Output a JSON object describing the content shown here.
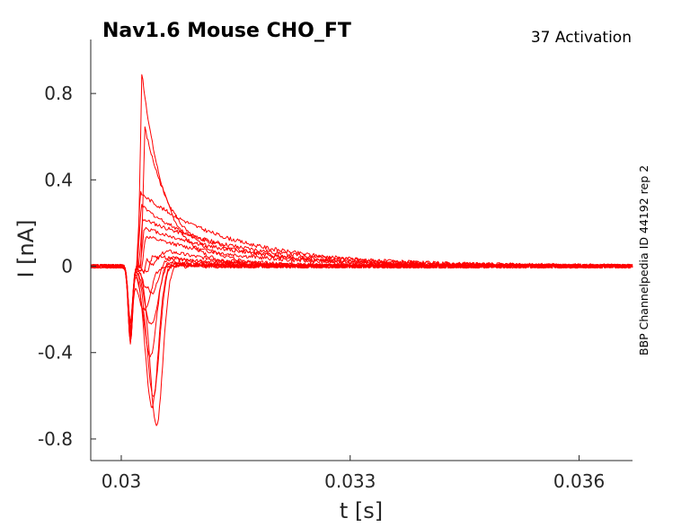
{
  "chart_data": {
    "type": "line",
    "title": "Nav1.6  Mouse  CHO_FT",
    "subtitle": "37  Activation",
    "side_note": "BBP Channelpedia ID 44192 rep 2",
    "xlabel": "t [s]",
    "ylabel": "I [nA]",
    "xlim": [
      0.0296,
      0.0367
    ],
    "ylim": [
      -0.9,
      1.05
    ],
    "xticks": [
      0.03,
      0.033,
      0.036
    ],
    "xtick_labels": [
      "0.03",
      "0.033",
      "0.036"
    ],
    "yticks": [
      0.8,
      0.4,
      0,
      -0.4,
      -0.8
    ],
    "ytick_labels": [
      "0.8",
      "0.4",
      "0",
      "-0.4",
      "-0.8"
    ],
    "grid": false,
    "legend": "none",
    "line_color": "#ff0000",
    "trace_shape": {
      "baseline_until": 0.03,
      "early_dip_time": 0.03012,
      "early_dip_value": -0.35,
      "peak_window": [
        0.0302,
        0.0306
      ]
    },
    "series": [
      {
        "peak": 0.9,
        "peak_t": 0.03027,
        "trough": 0.0,
        "trough_t": 0.0304,
        "tau": 0.0003
      },
      {
        "peak": 0.64,
        "peak_t": 0.03031,
        "trough": 0.0,
        "trough_t": 0.0305,
        "tau": 0.0004
      },
      {
        "peak": 0.34,
        "peak_t": 0.03025,
        "trough": 0.0,
        "trough_t": 0.0305,
        "tau": 0.0012
      },
      {
        "peak": 0.28,
        "peak_t": 0.03026,
        "trough": 0.0,
        "trough_t": 0.0305,
        "tau": 0.001
      },
      {
        "peak": 0.22,
        "peak_t": 0.03028,
        "trough": 0.0,
        "trough_t": 0.0305,
        "tau": 0.0014
      },
      {
        "peak": 0.18,
        "peak_t": 0.0303,
        "trough": 0.0,
        "trough_t": 0.0305,
        "tau": 0.0013
      },
      {
        "peak": 0.14,
        "peak_t": 0.03032,
        "trough": 0.0,
        "trough_t": 0.0306,
        "tau": 0.0012
      },
      {
        "peak": 0.1,
        "peak_t": 0.03034,
        "trough": -0.08,
        "trough_t": 0.0304,
        "tau": 0.0008
      },
      {
        "peak": 0.06,
        "peak_t": 0.03036,
        "trough": -0.18,
        "trough_t": 0.0304,
        "tau": 0.0006
      },
      {
        "peak": 0.04,
        "peak_t": 0.0304,
        "trough": -0.3,
        "trough_t": 0.0304,
        "tau": 0.0005
      },
      {
        "peak": 0.02,
        "peak_t": 0.03045,
        "trough": -0.42,
        "trough_t": 0.03038,
        "tau": 0.0005
      },
      {
        "peak": 0.02,
        "peak_t": 0.0305,
        "trough": -0.6,
        "trough_t": 0.03042,
        "tau": 0.0004
      },
      {
        "peak": 0.01,
        "peak_t": 0.03052,
        "trough": -0.65,
        "trough_t": 0.0304,
        "tau": 0.0004
      },
      {
        "peak": 0.01,
        "peak_t": 0.03055,
        "trough": -0.74,
        "trough_t": 0.03046,
        "tau": 0.0004
      },
      {
        "peak": 0.0,
        "peak_t": 0.03055,
        "trough": -0.2,
        "trough_t": 0.0303,
        "tau": 0.0006
      },
      {
        "peak": 0.05,
        "peak_t": 0.0304,
        "trough": -0.02,
        "trough_t": 0.0303,
        "tau": 0.0009
      }
    ]
  }
}
